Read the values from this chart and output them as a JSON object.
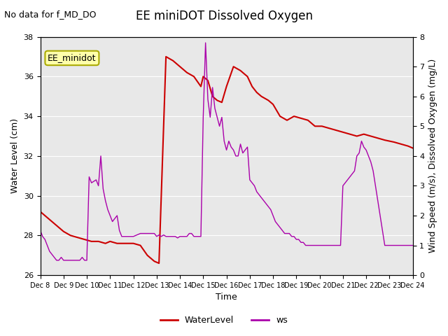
{
  "title": "EE miniDOT Dissolved Oxygen",
  "subtitle": "No data for f_MD_DO",
  "xlabel": "Time",
  "ylabel_left": "Water Level (cm)",
  "ylabel_right": "Wind Speed (m/s), Dissolved Oxygen (mg/L)",
  "legend_label": "EE_minidot",
  "ylim_left": [
    26,
    38
  ],
  "ylim_right": [
    0.0,
    8.0
  ],
  "yticks_left": [
    26,
    28,
    30,
    32,
    34,
    36,
    38
  ],
  "yticks_right": [
    0.0,
    1.0,
    2.0,
    3.0,
    4.0,
    5.0,
    6.0,
    7.0,
    8.0
  ],
  "bg_color": "#e8e8e8",
  "line_color_red": "#cc0000",
  "line_color_purple": "#aa00aa",
  "legend_box_color": "#ffffaa",
  "legend_box_border": "#aaaa00",
  "water_level_data": {
    "x": [
      8,
      8.2,
      8.5,
      8.8,
      9.0,
      9.3,
      9.6,
      9.9,
      10.2,
      10.5,
      10.8,
      11.0,
      11.3,
      11.6,
      12.0,
      12.3,
      12.6,
      12.9,
      13.1,
      13.4,
      13.7,
      14.0,
      14.3,
      14.6,
      14.9,
      15.0,
      15.2,
      15.4,
      15.6,
      15.8,
      16.0,
      16.3,
      16.6,
      16.9,
      17.1,
      17.3,
      17.5,
      17.8,
      18.0,
      18.3,
      18.6,
      18.9,
      19.2,
      19.5,
      19.8,
      20.1,
      20.4,
      20.7,
      21.0,
      21.3,
      21.6,
      21.9,
      22.2,
      22.5,
      22.8,
      23.2,
      23.5,
      23.8,
      24.0
    ],
    "y": [
      29.2,
      29.0,
      28.7,
      28.4,
      28.2,
      28.0,
      27.9,
      27.8,
      27.7,
      27.7,
      27.6,
      27.7,
      27.6,
      27.6,
      27.6,
      27.5,
      27.0,
      26.7,
      26.6,
      37.0,
      36.8,
      36.5,
      36.2,
      36.0,
      35.5,
      36.0,
      35.8,
      35.0,
      34.8,
      34.7,
      35.5,
      36.5,
      36.3,
      36.0,
      35.5,
      35.2,
      35.0,
      34.8,
      34.6,
      34.0,
      33.8,
      34.0,
      33.9,
      33.8,
      33.5,
      33.5,
      33.4,
      33.3,
      33.2,
      33.1,
      33.0,
      33.1,
      33.0,
      32.9,
      32.8,
      32.7,
      32.6,
      32.5,
      32.4
    ]
  },
  "wind_speed_data": {
    "x": [
      8.0,
      8.1,
      8.2,
      8.3,
      8.4,
      8.5,
      8.6,
      8.7,
      8.8,
      8.9,
      9.0,
      9.1,
      9.2,
      9.3,
      9.4,
      9.5,
      9.6,
      9.7,
      9.8,
      9.9,
      10.0,
      10.1,
      10.2,
      10.3,
      10.4,
      10.5,
      10.6,
      10.7,
      10.8,
      10.9,
      11.0,
      11.1,
      11.2,
      11.3,
      11.4,
      11.5,
      12.0,
      12.3,
      12.6,
      12.9,
      13.0,
      13.1,
      13.2,
      13.3,
      13.4,
      13.5,
      13.6,
      13.7,
      13.8,
      13.9,
      14.0,
      14.1,
      14.2,
      14.3,
      14.4,
      14.5,
      14.6,
      14.7,
      14.8,
      14.9,
      15.0,
      15.1,
      15.2,
      15.3,
      15.4,
      15.5,
      15.6,
      15.7,
      15.8,
      15.9,
      16.0,
      16.1,
      16.2,
      16.3,
      16.4,
      16.5,
      16.6,
      16.7,
      16.8,
      16.9,
      17.0,
      17.1,
      17.2,
      17.3,
      17.4,
      17.5,
      17.6,
      17.7,
      17.8,
      17.9,
      18.0,
      18.1,
      18.2,
      18.3,
      18.4,
      18.5,
      18.6,
      18.7,
      18.8,
      18.9,
      19.0,
      19.1,
      19.2,
      19.3,
      19.4,
      19.5,
      19.6,
      19.7,
      19.8,
      19.9,
      20.0,
      20.1,
      20.2,
      20.3,
      20.4,
      20.5,
      20.6,
      20.7,
      20.8,
      20.9,
      21.0,
      21.1,
      21.2,
      21.3,
      21.4,
      21.5,
      21.6,
      21.7,
      21.8,
      21.9,
      22.0,
      22.1,
      22.2,
      22.3,
      22.4,
      22.5,
      22.6,
      22.7,
      22.8,
      22.9,
      23.0,
      23.1,
      23.2,
      23.3,
      23.4,
      23.5,
      23.6,
      23.7,
      23.8,
      23.9,
      24.0
    ],
    "y": [
      1.5,
      1.3,
      1.2,
      1.0,
      0.8,
      0.7,
      0.6,
      0.5,
      0.5,
      0.6,
      0.5,
      0.5,
      0.5,
      0.5,
      0.5,
      0.5,
      0.5,
      0.5,
      0.6,
      0.5,
      0.5,
      3.3,
      3.1,
      3.15,
      3.2,
      3.0,
      4.0,
      2.9,
      2.5,
      2.2,
      2.0,
      1.8,
      1.9,
      2.0,
      1.5,
      1.3,
      1.3,
      1.4,
      1.4,
      1.4,
      1.3,
      1.35,
      1.3,
      1.35,
      1.3,
      1.3,
      1.3,
      1.3,
      1.3,
      1.25,
      1.3,
      1.3,
      1.3,
      1.3,
      1.4,
      1.4,
      1.3,
      1.3,
      1.3,
      1.3,
      5.3,
      7.8,
      5.9,
      5.3,
      6.3,
      5.6,
      5.3,
      5.0,
      5.3,
      4.5,
      4.2,
      4.5,
      4.3,
      4.2,
      4.0,
      4.0,
      4.4,
      4.1,
      4.2,
      4.3,
      3.2,
      3.1,
      3.0,
      2.8,
      2.7,
      2.6,
      2.5,
      2.4,
      2.3,
      2.2,
      2.0,
      1.8,
      1.7,
      1.6,
      1.5,
      1.4,
      1.4,
      1.4,
      1.3,
      1.3,
      1.2,
      1.2,
      1.1,
      1.1,
      1.0,
      1.0,
      1.0,
      1.0,
      1.0,
      1.0,
      1.0,
      1.0,
      1.0,
      1.0,
      1.0,
      1.0,
      1.0,
      1.0,
      1.0,
      1.0,
      3.0,
      3.1,
      3.2,
      3.3,
      3.4,
      3.5,
      4.0,
      4.1,
      4.5,
      4.3,
      4.2,
      4.0,
      3.8,
      3.5,
      3.0,
      2.5,
      2.0,
      1.5,
      1.0,
      1.0,
      1.0,
      1.0,
      1.0,
      1.0,
      1.0,
      1.0,
      1.0,
      1.0,
      1.0,
      1.0,
      1.0
    ]
  },
  "xlim": [
    8,
    24
  ],
  "xtick_positions": [
    8,
    9,
    10,
    11,
    12,
    13,
    14,
    15,
    16,
    17,
    18,
    19,
    20,
    21,
    22,
    23,
    24
  ],
  "xtick_labels": [
    "Dec 8",
    "Dec 9",
    "Dec 10",
    "Dec 11",
    "Dec 12",
    "Dec 13",
    "Dec 14",
    "Dec 15",
    "Dec 16",
    "Dec 17",
    "Dec 18",
    "Dec 19",
    "Dec 20",
    "Dec 21",
    "Dec 22",
    "Dec 23",
    "Dec 24"
  ]
}
